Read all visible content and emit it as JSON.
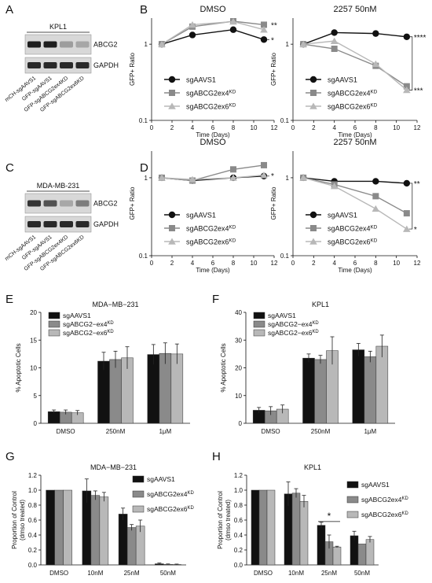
{
  "panel_letters": [
    "A",
    "B",
    "C",
    "D",
    "E",
    "F",
    "G",
    "H"
  ],
  "blots": [
    {
      "id": "A",
      "title": "KPL1",
      "bands": [
        "ABCG2",
        "GAPDH"
      ],
      "lanes": [
        "mCH-sgAAVS1",
        "GFP-sgAAVS1",
        "GFP-sgABCG2ex4KD",
        "GFP-sgABCG2ex6KD"
      ]
    },
    {
      "id": "C",
      "title": "MDA-MB-231",
      "bands": [
        "ABCG2",
        "GAPDH"
      ],
      "lanes": [
        "mCH-sgAAVS1",
        "GFP-sgAAVS1",
        "GFP-sgABCG2ex4KD",
        "GFP-sgABCG2ex6KD"
      ]
    }
  ],
  "legend_sets": {
    "kd_sup": [
      {
        "base": "sgAAVS1",
        "sup": ""
      },
      {
        "base": "sgABCG2ex4",
        "sup": "KD"
      },
      {
        "base": "sgABCG2ex6",
        "sup": "KD"
      }
    ],
    "kd_dash": [
      {
        "base": "sgAAVS1",
        "sup": ""
      },
      {
        "base": "sgABCG2−ex4",
        "sup": "KD"
      },
      {
        "base": "sgABCG2−ex6",
        "sup": "KD"
      }
    ]
  },
  "chart_data": [
    {
      "id": "B-left",
      "type": "line",
      "title": "DMSO",
      "xlabel": "Time (Days)",
      "ylabel": "GFP+ Ratio",
      "xlim": [
        0,
        12
      ],
      "ylim": [
        0.1,
        2.2
      ],
      "yscale": "log",
      "xticks": [
        "0",
        "2",
        "4",
        "6",
        "8",
        "10",
        "12"
      ],
      "yticks": [
        "0.1",
        "1"
      ],
      "x": [
        1,
        4,
        8,
        11
      ],
      "series": [
        {
          "name": "sgAAVS1",
          "values": [
            1.0,
            1.32,
            1.55,
            1.15
          ]
        },
        {
          "name": "sgABCG2ex4KD",
          "values": [
            1.0,
            1.7,
            2.0,
            1.8
          ]
        },
        {
          "name": "sgABCG2ex6KD",
          "values": [
            1.0,
            1.8,
            1.98,
            1.55
          ]
        }
      ],
      "significance": [
        "**",
        "*"
      ],
      "legend": "bottom"
    },
    {
      "id": "B-right",
      "type": "line",
      "title": "2257 50nM",
      "xlabel": "Time (Days)",
      "ylabel": "GFP+ Ratio",
      "xlim": [
        0,
        12
      ],
      "ylim": [
        0.1,
        2.2
      ],
      "yscale": "log",
      "xticks": [
        "0",
        "2",
        "4",
        "6",
        "8",
        "10",
        "12"
      ],
      "yticks": [
        "0.1",
        "1"
      ],
      "x": [
        1,
        4,
        8,
        11
      ],
      "series": [
        {
          "name": "sgAAVS1",
          "values": [
            1.0,
            1.42,
            1.38,
            1.25
          ]
        },
        {
          "name": "sgABCG2ex4KD",
          "values": [
            1.0,
            0.87,
            0.52,
            0.28
          ]
        },
        {
          "name": "sgABCG2ex6KD",
          "values": [
            1.0,
            1.1,
            0.55,
            0.25
          ]
        }
      ],
      "significance": [
        "****",
        "***"
      ],
      "legend": "bottom"
    },
    {
      "id": "D-left",
      "type": "line",
      "title": "DMSO",
      "xlabel": "Time (Days)",
      "ylabel": "GFP+ Ratio",
      "xlim": [
        0,
        12
      ],
      "ylim": [
        0.1,
        2.2
      ],
      "yscale": "log",
      "xticks": [
        "0",
        "2",
        "4",
        "6",
        "8",
        "10",
        "12"
      ],
      "yticks": [
        "0.1",
        "1"
      ],
      "x": [
        1,
        4,
        8,
        11
      ],
      "series": [
        {
          "name": "sgAAVS1",
          "values": [
            1.0,
            0.92,
            1.0,
            1.05
          ]
        },
        {
          "name": "sgABCG2ex4KD",
          "values": [
            1.0,
            0.92,
            1.28,
            1.45
          ]
        },
        {
          "name": "sgABCG2ex6KD",
          "values": [
            1.0,
            0.95,
            1.0,
            1.08
          ]
        }
      ],
      "significance": [
        "*"
      ],
      "legend": "bottom"
    },
    {
      "id": "D-right",
      "type": "line",
      "title": "2257 50nM",
      "xlabel": "Time (Days)",
      "ylabel": "GFP+ Ratio",
      "xlim": [
        0,
        12
      ],
      "ylim": [
        0.1,
        2.2
      ],
      "yscale": "log",
      "xticks": [
        "0",
        "2",
        "4",
        "6",
        "8",
        "10",
        "12"
      ],
      "yticks": [
        "0.1",
        "1"
      ],
      "x": [
        1,
        4,
        8,
        11
      ],
      "series": [
        {
          "name": "sgAAVS1",
          "values": [
            1.0,
            0.9,
            0.9,
            0.85
          ]
        },
        {
          "name": "sgABCG2ex4KD",
          "values": [
            1.0,
            0.82,
            0.58,
            0.35
          ]
        },
        {
          "name": "sgABCG2ex6KD",
          "values": [
            1.0,
            0.78,
            0.4,
            0.22
          ]
        }
      ],
      "significance": [
        "**",
        "*"
      ],
      "legend": "bottom"
    },
    {
      "id": "E",
      "type": "bar",
      "title": "MDA−MB−231",
      "ylabel": "% Apoptotic Cells",
      "categories": [
        "DMSO",
        "250nM",
        "1μM"
      ],
      "ylim": [
        0,
        20
      ],
      "yticks": [
        "0",
        "5",
        "10",
        "15",
        "20"
      ],
      "series": [
        {
          "name": "sgAAVS1",
          "values": [
            2.1,
            11.2,
            12.4
          ],
          "errors": [
            0.3,
            1.6,
            1.8
          ]
        },
        {
          "name": "sgABCG2−ex4KD",
          "values": [
            2.0,
            11.5,
            12.6
          ],
          "errors": [
            0.4,
            1.5,
            1.9
          ]
        },
        {
          "name": "sgABCG2−ex6KD",
          "values": [
            1.9,
            11.8,
            12.5
          ],
          "errors": [
            0.4,
            2.0,
            1.8
          ]
        }
      ],
      "legend": "top-left"
    },
    {
      "id": "F",
      "type": "bar",
      "title": "KPL1",
      "ylabel": "% Apoptotic Cells",
      "categories": [
        "DMSO",
        "250nM",
        "1μM"
      ],
      "ylim": [
        0,
        40
      ],
      "yticks": [
        "0",
        "10",
        "20",
        "30",
        "40"
      ],
      "series": [
        {
          "name": "sgAAVS1",
          "values": [
            4.7,
            23.5,
            26.5
          ],
          "errors": [
            1.0,
            1.5,
            2.3
          ]
        },
        {
          "name": "sgABCG2−ex4KD",
          "values": [
            4.5,
            23.0,
            24.0
          ],
          "errors": [
            1.5,
            1.5,
            2.0
          ]
        },
        {
          "name": "sgABCG2−ex6KD",
          "values": [
            5.1,
            26.2,
            27.8
          ],
          "errors": [
            1.5,
            5.0,
            4.0
          ]
        }
      ],
      "legend": "top-left"
    },
    {
      "id": "G",
      "type": "bar",
      "title": "MDA−MB−231",
      "ylabel": "Proportion of Control\n(dmso treated)",
      "categories": [
        "DMSO",
        "10nM",
        "25nM",
        "50nM"
      ],
      "ylim": [
        0,
        1.2
      ],
      "yticks": [
        "0.0",
        "0.2",
        "0.4",
        "0.6",
        "0.8",
        "1.0",
        "1.2"
      ],
      "series": [
        {
          "name": "sgAAVS1",
          "values": [
            1.0,
            0.99,
            0.68,
            0.015
          ],
          "errors": [
            0,
            0.16,
            0.08,
            0.01
          ]
        },
        {
          "name": "sgABCG2ex4KD",
          "values": [
            1.0,
            0.93,
            0.5,
            0.008
          ],
          "errors": [
            0,
            0.06,
            0.04,
            0.005
          ]
        },
        {
          "name": "sgABCG2ex6KD",
          "values": [
            1.0,
            0.91,
            0.52,
            0.006
          ],
          "errors": [
            0,
            0.06,
            0.08,
            0.005
          ]
        }
      ],
      "legend": "right"
    },
    {
      "id": "H",
      "type": "bar",
      "title": "KPL1",
      "ylabel": "Proportion of Control\n(dmso treated)",
      "categories": [
        "DMSO",
        "10nM",
        "25nM",
        "50nM"
      ],
      "ylim": [
        0,
        1.2
      ],
      "yticks": [
        "0.0",
        "0.2",
        "0.4",
        "0.6",
        "0.8",
        "1.0",
        "1.2"
      ],
      "series": [
        {
          "name": "sgAAVS1",
          "values": [
            1.0,
            0.95,
            0.53,
            0.39
          ],
          "errors": [
            0,
            0.16,
            0.04,
            0.06
          ]
        },
        {
          "name": "sgABCG2ex4KD",
          "values": [
            1.0,
            0.96,
            0.31,
            0.28
          ],
          "errors": [
            0,
            0.06,
            0.09,
            0.0
          ]
        },
        {
          "name": "sgABCG2ex6KD",
          "values": [
            1.0,
            0.85,
            0.24,
            0.34
          ],
          "errors": [
            0,
            0.08,
            0.01,
            0.04
          ]
        }
      ],
      "significance": [
        "*"
      ],
      "legend": "right"
    }
  ],
  "colors": {
    "s1": "#111111",
    "s2": "#8a8a8a",
    "s3": "#b8b8b8",
    "axis": "#111111"
  }
}
